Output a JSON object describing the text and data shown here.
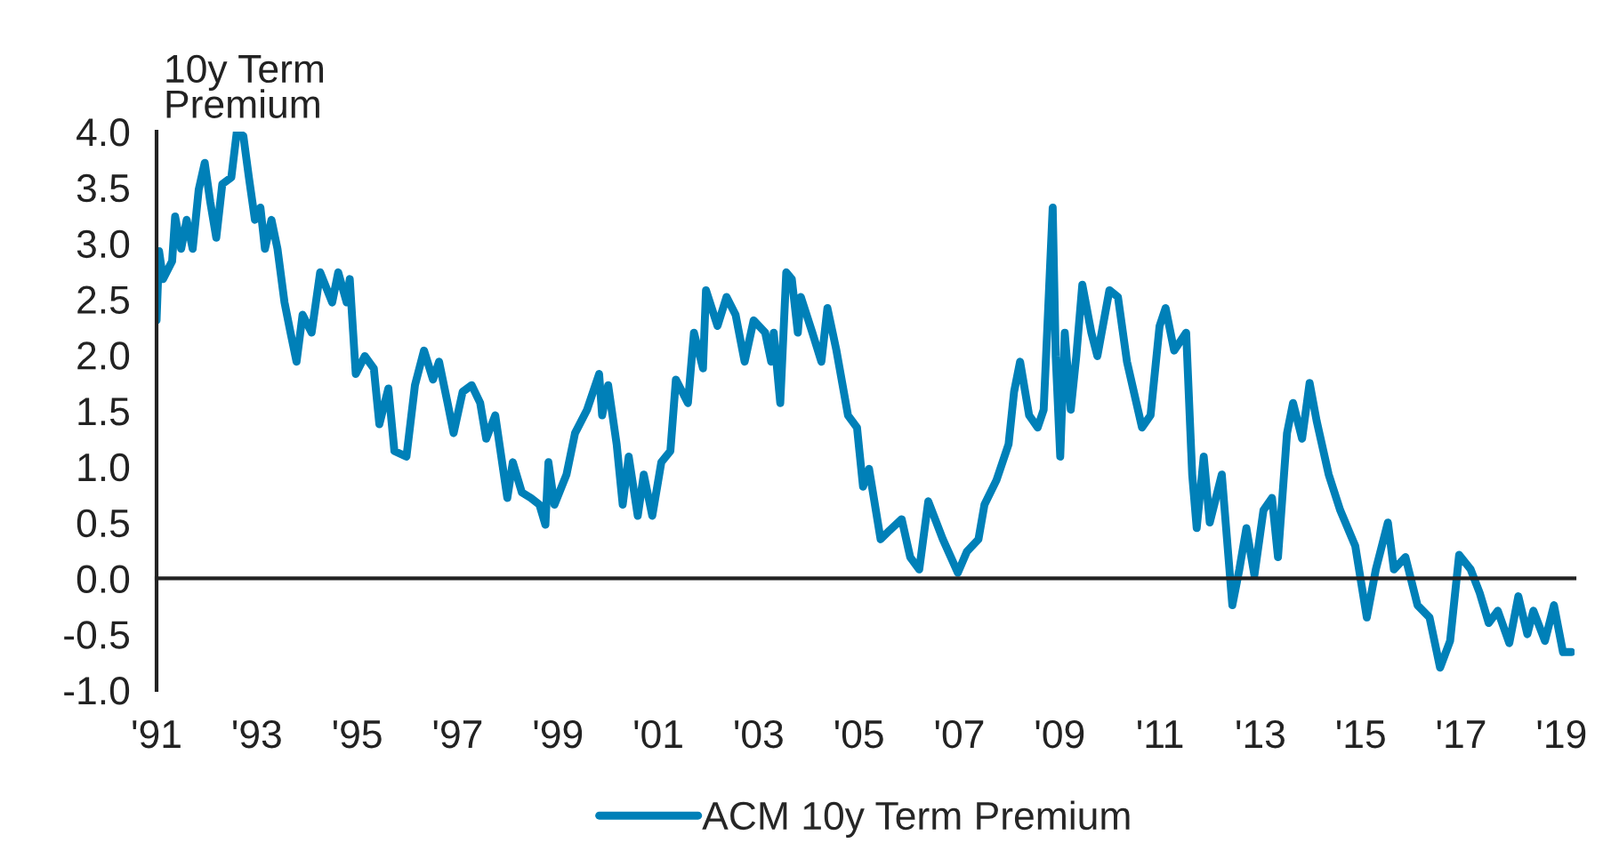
{
  "chart_data": {
    "type": "line",
    "ylabel": "10y Term\nPremium",
    "x": [
      1991.0,
      1991.05,
      1991.13,
      1991.31,
      1991.37,
      1991.49,
      1991.6,
      1991.72,
      1991.84,
      1991.96,
      1992.07,
      1992.19,
      1992.31,
      1992.49,
      1992.6,
      1992.73,
      1992.84,
      1992.96,
      1993.07,
      1993.16,
      1993.29,
      1993.41,
      1993.55,
      1993.67,
      1993.79,
      1993.91,
      1994.09,
      1994.26,
      1994.5,
      1994.62,
      1994.79,
      1994.85,
      1994.97,
      1995.15,
      1995.33,
      1995.44,
      1995.62,
      1995.74,
      1995.98,
      1996.15,
      1996.33,
      1996.51,
      1996.63,
      1996.8,
      1996.92,
      1997.1,
      1997.28,
      1997.45,
      1997.57,
      1997.75,
      1997.99,
      1998.1,
      1998.28,
      1998.46,
      1998.63,
      1998.75,
      1998.81,
      1998.93,
      1999.17,
      1999.34,
      1999.58,
      1999.82,
      1999.88,
      2000.0,
      2000.17,
      2000.29,
      2000.41,
      2000.59,
      2000.71,
      2000.88,
      2001.06,
      2001.24,
      2001.35,
      2001.59,
      2001.71,
      2001.89,
      2001.95,
      2002.18,
      2002.36,
      2002.54,
      2002.72,
      2002.9,
      2003.13,
      2003.25,
      2003.3,
      2003.43,
      2003.55,
      2003.66,
      2003.78,
      2003.84,
      2004.07,
      2004.25,
      2004.37,
      2004.55,
      2004.78,
      2004.96,
      2005.08,
      2005.2,
      2005.43,
      2005.61,
      2005.85,
      2006.02,
      2006.2,
      2006.38,
      2006.67,
      2006.97,
      2007.15,
      2007.38,
      2007.5,
      2007.74,
      2007.98,
      2008.09,
      2008.21,
      2008.39,
      2008.56,
      2008.68,
      2008.86,
      2008.92,
      2009.01,
      2009.1,
      2009.22,
      2009.33,
      2009.45,
      2009.63,
      2009.75,
      2009.99,
      2010.16,
      2010.34,
      2010.64,
      2010.81,
      2010.99,
      2011.11,
      2011.28,
      2011.52,
      2011.64,
      2011.73,
      2011.87,
      2011.99,
      2012.23,
      2012.44,
      2012.58,
      2012.72,
      2012.88,
      2013.06,
      2013.23,
      2013.35,
      2013.53,
      2013.65,
      2013.83,
      2013.98,
      2014.12,
      2014.36,
      2014.59,
      2014.89,
      2015.12,
      2015.3,
      2015.54,
      2015.66,
      2015.89,
      2016.13,
      2016.37,
      2016.58,
      2016.78,
      2016.96,
      2017.19,
      2017.37,
      2017.55,
      2017.73,
      2017.96,
      2018.14,
      2018.32,
      2018.44,
      2018.67,
      2018.85,
      2019.03,
      2019.2
    ],
    "series": [
      {
        "name": "ACM 10y Term Premium",
        "color": "#0080b8",
        "values": [
          2.31,
          2.93,
          2.68,
          2.84,
          3.24,
          2.95,
          3.21,
          2.95,
          3.48,
          3.72,
          3.37,
          3.05,
          3.53,
          3.59,
          4.0,
          3.96,
          3.59,
          3.21,
          3.32,
          2.95,
          3.21,
          2.95,
          2.47,
          2.2,
          1.94,
          2.36,
          2.2,
          2.74,
          2.47,
          2.74,
          2.47,
          2.68,
          1.83,
          1.99,
          1.88,
          1.38,
          1.7,
          1.14,
          1.09,
          1.73,
          2.04,
          1.78,
          1.94,
          1.57,
          1.3,
          1.67,
          1.73,
          1.57,
          1.25,
          1.46,
          0.72,
          1.04,
          0.77,
          0.72,
          0.66,
          0.48,
          1.04,
          0.66,
          0.93,
          1.3,
          1.51,
          1.83,
          1.46,
          1.73,
          1.2,
          0.66,
          1.09,
          0.56,
          0.93,
          0.56,
          1.04,
          1.14,
          1.78,
          1.57,
          2.2,
          1.88,
          2.58,
          2.26,
          2.52,
          2.36,
          1.94,
          2.31,
          2.2,
          1.94,
          2.2,
          1.57,
          2.74,
          2.68,
          2.2,
          2.52,
          2.2,
          1.94,
          2.42,
          2.04,
          1.46,
          1.35,
          0.82,
          0.98,
          0.35,
          0.43,
          0.53,
          0.19,
          0.08,
          0.69,
          0.35,
          0.05,
          0.24,
          0.35,
          0.66,
          0.88,
          1.2,
          1.67,
          1.94,
          1.46,
          1.35,
          1.51,
          3.32,
          1.99,
          1.09,
          2.2,
          1.51,
          1.99,
          2.63,
          2.2,
          1.99,
          2.58,
          2.52,
          1.94,
          1.35,
          1.46,
          2.26,
          2.42,
          2.04,
          2.2,
          0.93,
          0.45,
          1.09,
          0.5,
          0.93,
          -0.24,
          0.08,
          0.45,
          0.03,
          0.61,
          0.72,
          0.19,
          1.3,
          1.57,
          1.25,
          1.75,
          1.41,
          0.93,
          0.61,
          0.29,
          -0.35,
          0.08,
          0.5,
          0.08,
          0.19,
          -0.24,
          -0.35,
          -0.8,
          -0.56,
          0.21,
          0.08,
          -0.13,
          -0.4,
          -0.29,
          -0.58,
          -0.16,
          -0.5,
          -0.29,
          -0.56,
          -0.24,
          -0.66,
          -0.66
        ]
      }
    ],
    "xlim": [
      1991,
      2019.26
    ],
    "xticks": [
      {
        "value": 1991,
        "label": "'91"
      },
      {
        "value": 1993,
        "label": "'93"
      },
      {
        "value": 1995,
        "label": "'95"
      },
      {
        "value": 1997,
        "label": "'97"
      },
      {
        "value": 1999,
        "label": "'99"
      },
      {
        "value": 2001,
        "label": "'01"
      },
      {
        "value": 2003,
        "label": "'03"
      },
      {
        "value": 2005,
        "label": "'05"
      },
      {
        "value": 2007,
        "label": "'07"
      },
      {
        "value": 2009,
        "label": "'09"
      },
      {
        "value": 2011,
        "label": "'11"
      },
      {
        "value": 2013,
        "label": "'13"
      },
      {
        "value": 2015,
        "label": "'15"
      },
      {
        "value": 2017,
        "label": "'17"
      },
      {
        "value": 2019,
        "label": "'19"
      }
    ],
    "ylim": [
      -1.0,
      4.0
    ],
    "yticks": [
      {
        "value": 4.0,
        "label": "4.0"
      },
      {
        "value": 3.5,
        "label": "3.5"
      },
      {
        "value": 3.0,
        "label": "3.0"
      },
      {
        "value": 2.5,
        "label": "2.5"
      },
      {
        "value": 2.0,
        "label": "2.0"
      },
      {
        "value": 1.5,
        "label": "1.5"
      },
      {
        "value": 1.0,
        "label": "1.0"
      },
      {
        "value": 0.5,
        "label": "0.5"
      },
      {
        "value": 0.0,
        "label": "0.0"
      },
      {
        "value": -0.5,
        "label": "-0.5"
      },
      {
        "value": -1.0,
        "label": "-1.0"
      }
    ],
    "legend": "bottom",
    "line_style": "solid"
  }
}
